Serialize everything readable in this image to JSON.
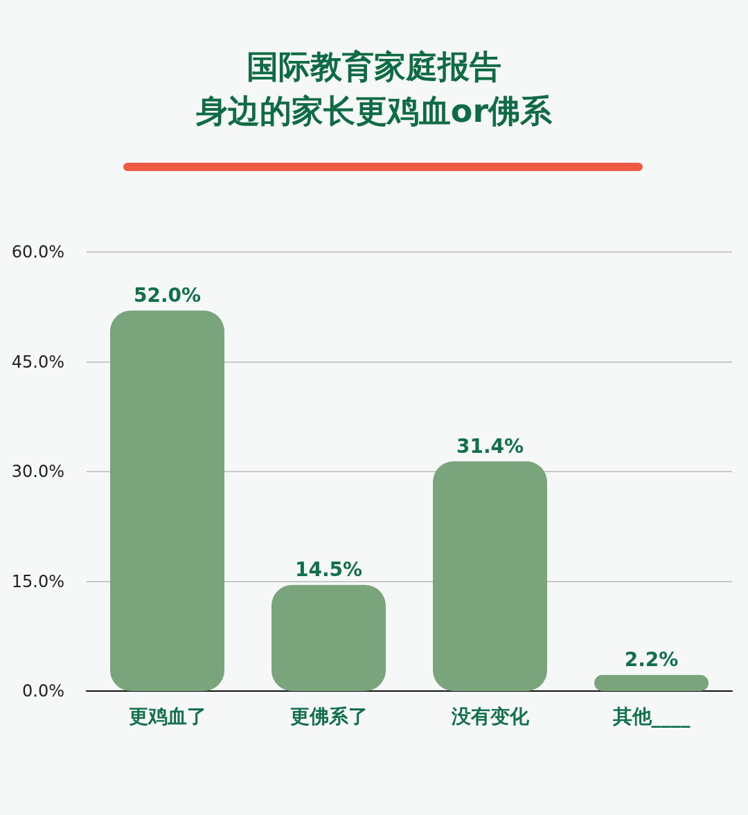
{
  "chart_data": {
    "type": "bar",
    "title": "国际教育家庭报告",
    "subtitle": "身边的家长更鸡血or佛系",
    "categories": [
      "更鸡血了",
      "更佛系了",
      "没有变化",
      "其他____"
    ],
    "values": [
      52.0,
      14.5,
      31.4,
      2.2
    ],
    "value_labels": [
      "52.0%",
      "14.5%",
      "31.4%",
      "2.2%"
    ],
    "color": "#79a47c",
    "ylim": [
      0,
      60
    ],
    "yticks": [
      {
        "value": 0,
        "label": "0.0%"
      },
      {
        "value": 15,
        "label": "15.0%"
      },
      {
        "value": 30,
        "label": "30.0%"
      },
      {
        "value": 45,
        "label": "45.0%"
      },
      {
        "value": 60,
        "label": "60.0%"
      }
    ],
    "grid": "y"
  }
}
